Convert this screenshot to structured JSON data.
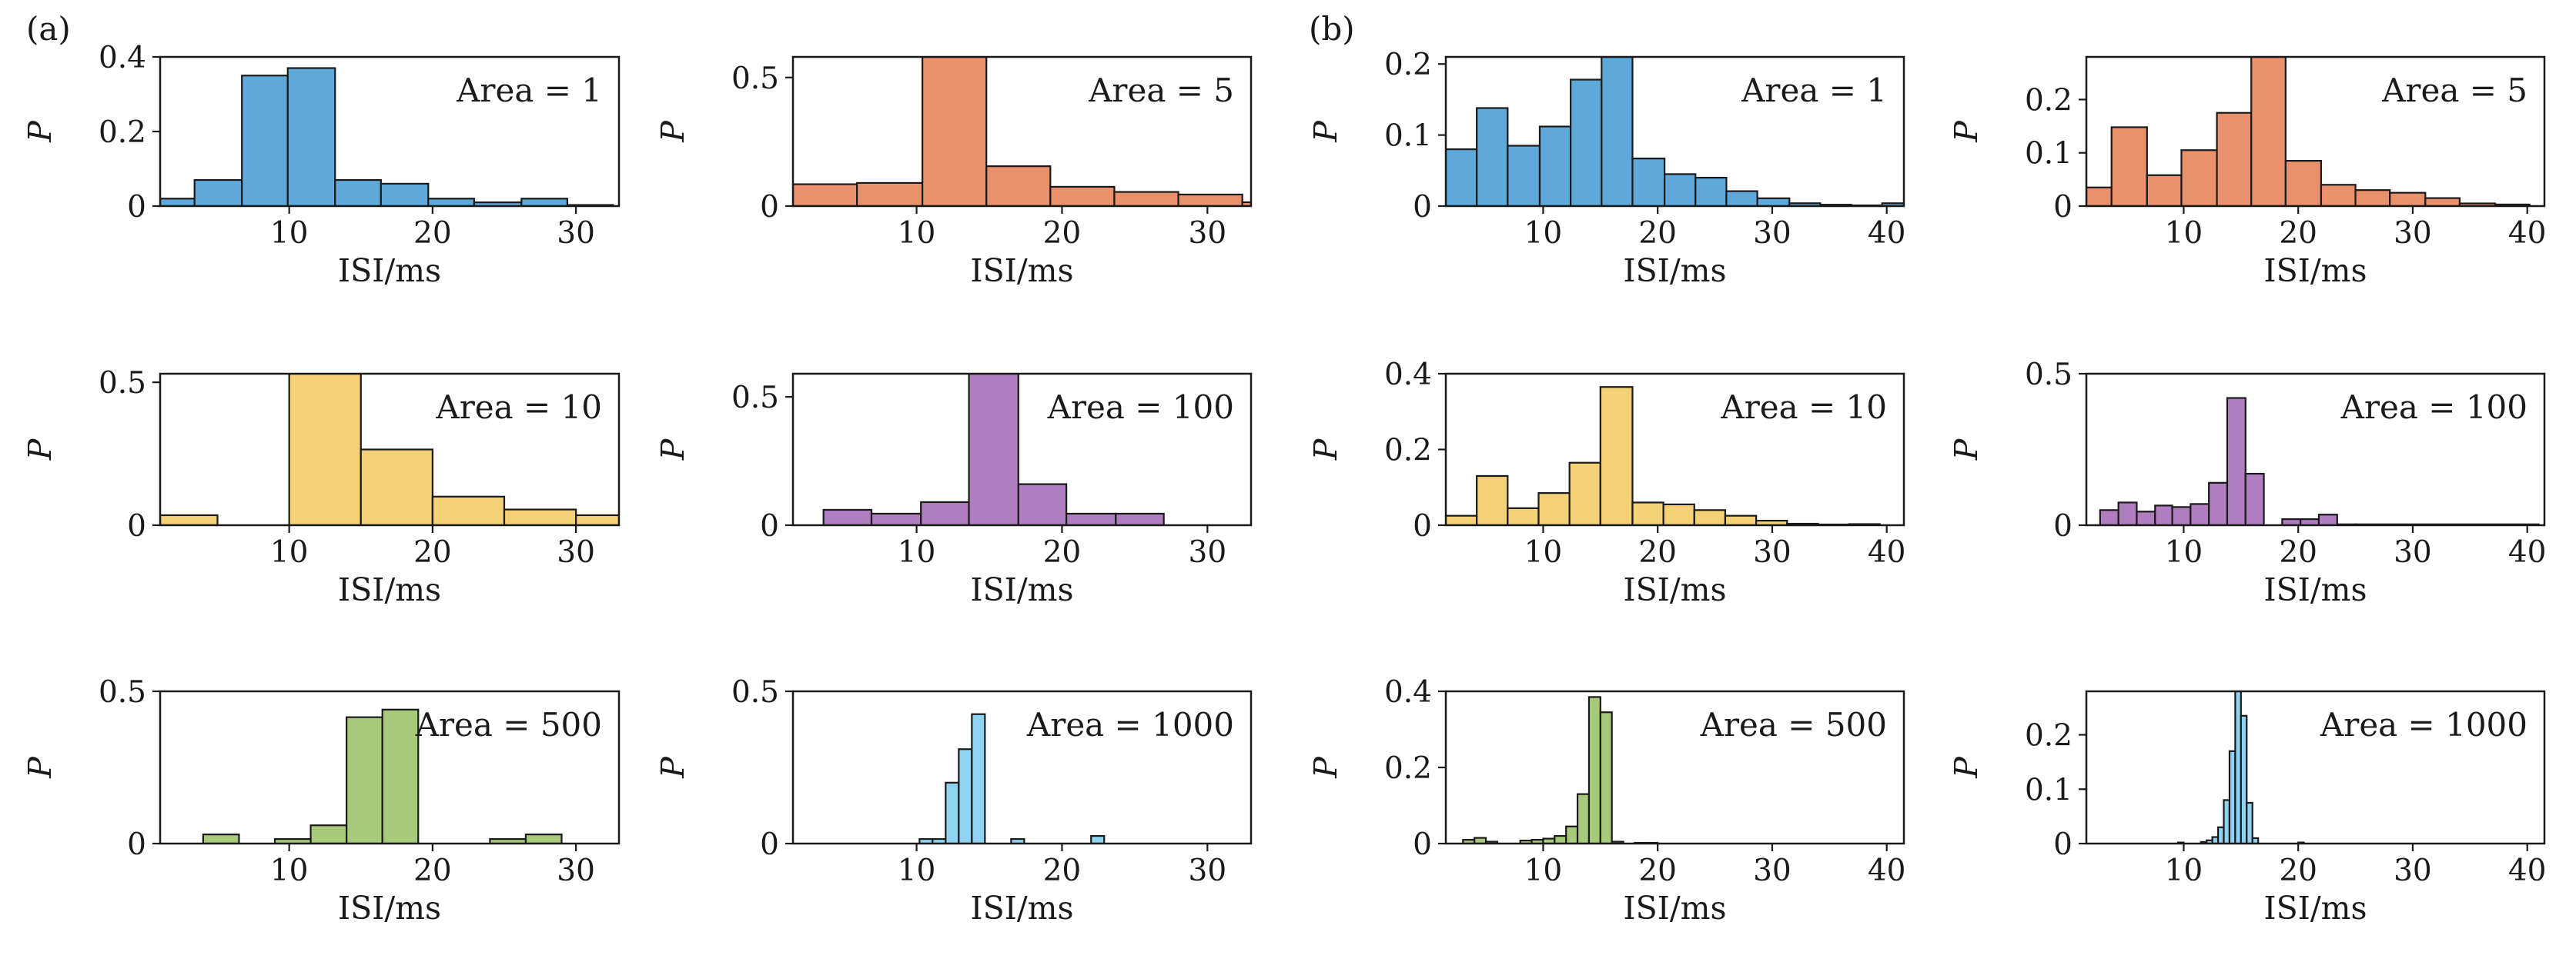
{
  "panel_labels": [
    "(a)",
    "(b)"
  ],
  "colors": {
    "Area = 1": "#5fa8da",
    "Area = 5": "#e9906d",
    "Area = 10": "#f4d176",
    "Area = 100": "#b07dbe",
    "Area = 500": "#a6c97a",
    "Area = 1000": "#8fd3f3",
    "edge": "#1a1a1a"
  },
  "chart_data": [
    {
      "id": "a1",
      "panel": "(a)",
      "type": "bar",
      "title": "Area = 1",
      "xlabel": "ISI/ms",
      "ylabel": "P",
      "xlim": [
        1,
        33
      ],
      "ylim": [
        0,
        0.4
      ],
      "xticks": [
        10,
        20,
        30
      ],
      "yticks": [
        0,
        0.2,
        0.4
      ],
      "ytick_labels": [
        "0",
        "0.2",
        "0.4"
      ],
      "bins": [
        [
          1,
          3.4,
          0.02
        ],
        [
          3.4,
          6.7,
          0.07
        ],
        [
          6.7,
          9.9,
          0.35
        ],
        [
          9.9,
          13.2,
          0.37
        ],
        [
          13.2,
          16.4,
          0.07
        ],
        [
          16.4,
          19.7,
          0.06
        ],
        [
          19.7,
          22.9,
          0.02
        ],
        [
          22.9,
          26.2,
          0.01
        ],
        [
          26.2,
          29.4,
          0.02
        ],
        [
          29.4,
          32.6,
          0.003
        ]
      ]
    },
    {
      "id": "a2",
      "panel": "(a)",
      "type": "bar",
      "title": "Area = 5",
      "xlabel": "ISI/ms",
      "ylabel": "P",
      "xlim": [
        1.5,
        33
      ],
      "ylim": [
        0,
        0.58
      ],
      "xticks": [
        10,
        20,
        30
      ],
      "yticks": [
        0,
        0.5
      ],
      "ytick_labels": [
        "0",
        "0.5"
      ],
      "bins": [
        [
          1.5,
          5.9,
          0.085
        ],
        [
          5.9,
          10.4,
          0.09
        ],
        [
          10.4,
          14.8,
          0.58
        ],
        [
          14.8,
          19.2,
          0.155
        ],
        [
          19.2,
          23.6,
          0.075
        ],
        [
          23.6,
          28.0,
          0.055
        ],
        [
          28.0,
          32.4,
          0.045
        ],
        [
          32.4,
          33,
          0.015
        ]
      ]
    },
    {
      "id": "a3",
      "panel": "(a)",
      "type": "bar",
      "title": "Area = 10",
      "xlabel": "ISI/ms",
      "ylabel": "P",
      "xlim": [
        1,
        33
      ],
      "ylim": [
        0,
        0.53
      ],
      "xticks": [
        10,
        20,
        30
      ],
      "yticks": [
        0,
        0.5
      ],
      "ytick_labels": [
        "0",
        "0.5"
      ],
      "bins": [
        [
          1,
          5,
          0.035
        ],
        [
          5,
          10,
          0
        ],
        [
          10,
          15,
          0.53
        ],
        [
          15,
          20,
          0.265
        ],
        [
          20,
          25,
          0.1
        ],
        [
          25,
          30,
          0.055
        ],
        [
          30,
          33,
          0.035
        ]
      ]
    },
    {
      "id": "a4",
      "panel": "(a)",
      "type": "bar",
      "title": "Area = 100",
      "xlabel": "ISI/ms",
      "ylabel": "P",
      "xlim": [
        1.5,
        33
      ],
      "ylim": [
        0,
        0.59
      ],
      "xticks": [
        10,
        20,
        30
      ],
      "yticks": [
        0,
        0.5
      ],
      "ytick_labels": [
        "0",
        "0.5"
      ],
      "bins": [
        [
          3.6,
          6.9,
          0.06
        ],
        [
          6.9,
          10.3,
          0.045
        ],
        [
          10.3,
          13.6,
          0.09
        ],
        [
          13.6,
          17.0,
          0.59
        ],
        [
          17.0,
          20.3,
          0.16
        ],
        [
          20.3,
          23.7,
          0.045
        ],
        [
          23.7,
          27.0,
          0.045
        ]
      ]
    },
    {
      "id": "a5",
      "panel": "(a)",
      "type": "bar",
      "title": "Area = 500",
      "xlabel": "ISI/ms",
      "ylabel": "P",
      "xlim": [
        1,
        33
      ],
      "ylim": [
        0,
        0.5
      ],
      "xticks": [
        10,
        20,
        30
      ],
      "yticks": [
        0,
        0.5
      ],
      "ytick_labels": [
        "0",
        "0.5"
      ],
      "bins": [
        [
          4,
          6.5,
          0.03
        ],
        [
          9,
          11.5,
          0.015
        ],
        [
          11.5,
          14,
          0.06
        ],
        [
          14,
          16.5,
          0.415
        ],
        [
          16.5,
          19,
          0.44
        ],
        [
          24,
          26.5,
          0.015
        ],
        [
          26.5,
          29,
          0.03
        ]
      ]
    },
    {
      "id": "a6",
      "panel": "(a)",
      "type": "bar",
      "title": "Area = 1000",
      "xlabel": "ISI/ms",
      "ylabel": "P",
      "xlim": [
        1.5,
        33
      ],
      "ylim": [
        0,
        0.5
      ],
      "xticks": [
        10,
        20,
        30
      ],
      "yticks": [
        0,
        0.5
      ],
      "ytick_labels": [
        "0",
        "0.5"
      ],
      "bins": [
        [
          10.2,
          11.1,
          0.015
        ],
        [
          11.1,
          12.0,
          0.015
        ],
        [
          12.0,
          12.9,
          0.2
        ],
        [
          12.9,
          13.8,
          0.31
        ],
        [
          13.8,
          14.7,
          0.425
        ],
        [
          16.5,
          17.4,
          0.015
        ],
        [
          22.0,
          22.9,
          0.025
        ]
      ]
    },
    {
      "id": "b1",
      "panel": "(b)",
      "type": "bar",
      "title": "Area = 1",
      "xlabel": "ISI/ms",
      "ylabel": "P",
      "xlim": [
        1.5,
        41.5
      ],
      "ylim": [
        0,
        0.21
      ],
      "xticks": [
        10,
        20,
        30,
        40
      ],
      "yticks": [
        0,
        0.1,
        0.2
      ],
      "ytick_labels": [
        "0",
        "0.1",
        "0.2"
      ],
      "bins": [
        [
          1.5,
          4.2,
          0.08
        ],
        [
          4.2,
          6.9,
          0.138
        ],
        [
          6.9,
          9.7,
          0.085
        ],
        [
          9.7,
          12.4,
          0.112
        ],
        [
          12.4,
          15.1,
          0.178
        ],
        [
          15.1,
          17.8,
          0.21
        ],
        [
          17.8,
          20.6,
          0.067
        ],
        [
          20.6,
          23.3,
          0.045
        ],
        [
          23.3,
          26.0,
          0.04
        ],
        [
          26.0,
          28.7,
          0.021
        ],
        [
          28.7,
          31.5,
          0.011
        ],
        [
          31.5,
          34.2,
          0.004
        ],
        [
          34.2,
          36.9,
          0.002
        ],
        [
          36.9,
          39.6,
          0.001
        ],
        [
          39.6,
          41.5,
          0.004
        ]
      ]
    },
    {
      "id": "b2",
      "panel": "(b)",
      "type": "bar",
      "title": "Area = 5",
      "xlabel": "ISI/ms",
      "ylabel": "P",
      "xlim": [
        1.5,
        41.5
      ],
      "ylim": [
        0,
        0.28
      ],
      "xticks": [
        10,
        20,
        30,
        40
      ],
      "yticks": [
        0,
        0.1,
        0.2
      ],
      "ytick_labels": [
        "0",
        "0.1",
        "0.2"
      ],
      "bins": [
        [
          1.5,
          3.7,
          0.035
        ],
        [
          3.7,
          6.8,
          0.148
        ],
        [
          6.8,
          9.8,
          0.058
        ],
        [
          9.8,
          12.9,
          0.105
        ],
        [
          12.9,
          15.9,
          0.175
        ],
        [
          15.9,
          18.9,
          0.28
        ],
        [
          18.9,
          22.0,
          0.085
        ],
        [
          22.0,
          25.0,
          0.04
        ],
        [
          25.0,
          28.0,
          0.03
        ],
        [
          28.0,
          31.1,
          0.025
        ],
        [
          31.1,
          34.1,
          0.015
        ],
        [
          34.1,
          37.2,
          0.005
        ],
        [
          37.2,
          40.2,
          0.003
        ]
      ]
    },
    {
      "id": "b3",
      "panel": "(b)",
      "type": "bar",
      "title": "Area = 10",
      "xlabel": "ISI/ms",
      "ylabel": "P",
      "xlim": [
        1.5,
        41.5
      ],
      "ylim": [
        0,
        0.4
      ],
      "xticks": [
        10,
        20,
        30,
        40
      ],
      "yticks": [
        0,
        0.2,
        0.4
      ],
      "ytick_labels": [
        "0",
        "0.2",
        "0.4"
      ],
      "bins": [
        [
          1.5,
          4.2,
          0.025
        ],
        [
          4.2,
          6.9,
          0.13
        ],
        [
          6.9,
          9.6,
          0.045
        ],
        [
          9.6,
          12.3,
          0.085
        ],
        [
          12.3,
          15.0,
          0.165
        ],
        [
          15.0,
          17.8,
          0.365
        ],
        [
          17.8,
          20.5,
          0.06
        ],
        [
          20.5,
          23.2,
          0.055
        ],
        [
          23.2,
          25.9,
          0.04
        ],
        [
          25.9,
          28.6,
          0.025
        ],
        [
          28.6,
          31.3,
          0.012
        ],
        [
          31.3,
          34.0,
          0.004
        ],
        [
          34.0,
          36.7,
          0.002
        ],
        [
          36.7,
          39.4,
          0.003
        ]
      ]
    },
    {
      "id": "b4",
      "panel": "(b)",
      "type": "bar",
      "title": "Area = 100",
      "xlabel": "ISI/ms",
      "ylabel": "P",
      "xlim": [
        1.5,
        41.5
      ],
      "ylim": [
        0,
        0.5
      ],
      "xticks": [
        10,
        20,
        30,
        40
      ],
      "yticks": [
        0,
        0.5
      ],
      "ytick_labels": [
        "0",
        "0.5"
      ],
      "bins": [
        [
          2.7,
          4.3,
          0.05
        ],
        [
          4.3,
          5.9,
          0.075
        ],
        [
          5.9,
          7.5,
          0.045
        ],
        [
          7.5,
          9.0,
          0.065
        ],
        [
          9.0,
          10.6,
          0.06
        ],
        [
          10.6,
          12.2,
          0.07
        ],
        [
          12.2,
          13.8,
          0.14
        ],
        [
          13.8,
          15.4,
          0.42
        ],
        [
          15.4,
          17.0,
          0.17
        ],
        [
          17.0,
          18.6,
          0.0
        ],
        [
          18.6,
          20.2,
          0.02
        ],
        [
          20.2,
          21.8,
          0.02
        ],
        [
          21.8,
          23.4,
          0.035
        ],
        [
          23.4,
          25.0,
          0.003
        ],
        [
          25.0,
          41.0,
          0.003
        ]
      ]
    },
    {
      "id": "b5",
      "panel": "(b)",
      "type": "bar",
      "title": "Area = 500",
      "xlabel": "ISI/ms",
      "ylabel": "P",
      "xlim": [
        1.5,
        41.5
      ],
      "ylim": [
        0,
        0.4
      ],
      "xticks": [
        10,
        20,
        30,
        40
      ],
      "yticks": [
        0,
        0.2,
        0.4
      ],
      "ytick_labels": [
        "0",
        "0.2",
        "0.4"
      ],
      "bins": [
        [
          3.0,
          4.0,
          0.01
        ],
        [
          4.0,
          5.0,
          0.015
        ],
        [
          5.0,
          6.0,
          0.005
        ],
        [
          8.0,
          9.0,
          0.008
        ],
        [
          9.0,
          10.0,
          0.01
        ],
        [
          10.0,
          11.0,
          0.013
        ],
        [
          11.0,
          12.0,
          0.02
        ],
        [
          12.0,
          13.0,
          0.045
        ],
        [
          13.0,
          14.0,
          0.13
        ],
        [
          14.0,
          15.0,
          0.385
        ],
        [
          15.0,
          16.0,
          0.345
        ],
        [
          16.0,
          17.0,
          0.005
        ],
        [
          18.0,
          19.0,
          0.002
        ],
        [
          19.0,
          20.0,
          0.002
        ]
      ]
    },
    {
      "id": "b6",
      "panel": "(b)",
      "type": "bar",
      "title": "Area = 1000",
      "xlabel": "ISI/ms",
      "ylabel": "P",
      "xlim": [
        1.5,
        41.5
      ],
      "ylim": [
        0,
        0.28
      ],
      "xticks": [
        10,
        20,
        30,
        40
      ],
      "yticks": [
        0,
        0.1,
        0.2
      ],
      "ytick_labels": [
        "0",
        "0.1",
        "0.2"
      ],
      "bins": [
        [
          9.5,
          10.0,
          0.002
        ],
        [
          11.5,
          12.0,
          0.003
        ],
        [
          12.0,
          12.5,
          0.006
        ],
        [
          12.5,
          13.0,
          0.012
        ],
        [
          13.0,
          13.5,
          0.03
        ],
        [
          13.5,
          14.0,
          0.08
        ],
        [
          14.0,
          14.5,
          0.17
        ],
        [
          14.5,
          15.0,
          0.28
        ],
        [
          15.0,
          15.5,
          0.235
        ],
        [
          15.5,
          16.0,
          0.075
        ],
        [
          16.0,
          16.5,
          0.01
        ],
        [
          20.0,
          20.5,
          0.002
        ]
      ]
    }
  ]
}
